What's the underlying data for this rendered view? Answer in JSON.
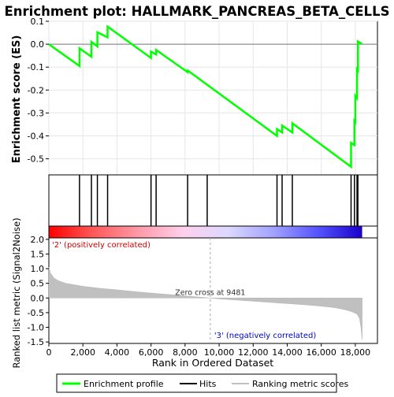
{
  "chart_data": {
    "type": "line",
    "title": "Enrichment plot: HALLMARK_PANCREAS_BETA_CELLS",
    "es_panel": {
      "ylabel": "Enrichment score (ES)",
      "ylim": [
        -0.57,
        0.1
      ],
      "yticks": [
        -0.5,
        -0.4,
        -0.3,
        -0.2,
        -0.1,
        0.0,
        0.1
      ],
      "grid": true,
      "series_name": "Enrichment profile",
      "color": "#00ff00",
      "points": [
        [
          0,
          0.0
        ],
        [
          1800,
          -0.095
        ],
        [
          1800,
          -0.018
        ],
        [
          2500,
          -0.055
        ],
        [
          2500,
          0.01
        ],
        [
          2850,
          -0.01
        ],
        [
          2850,
          0.052
        ],
        [
          3450,
          0.03
        ],
        [
          3450,
          0.077
        ],
        [
          6000,
          -0.06
        ],
        [
          6000,
          -0.032
        ],
        [
          6300,
          -0.045
        ],
        [
          6300,
          -0.025
        ],
        [
          8150,
          -0.122
        ],
        [
          8150,
          -0.115
        ],
        [
          8250,
          -0.12
        ],
        [
          13400,
          -0.4
        ],
        [
          13400,
          -0.37
        ],
        [
          13700,
          -0.385
        ],
        [
          13700,
          -0.355
        ],
        [
          14300,
          -0.385
        ],
        [
          14300,
          -0.345
        ],
        [
          17750,
          -0.535
        ],
        [
          17750,
          -0.43
        ],
        [
          17950,
          -0.44
        ],
        [
          17950,
          -0.335
        ],
        [
          18000,
          -0.34
        ],
        [
          18000,
          -0.225
        ],
        [
          18100,
          -0.235
        ],
        [
          18100,
          -0.11
        ],
        [
          18150,
          -0.115
        ],
        [
          18150,
          0.012
        ],
        [
          18400,
          0.0
        ]
      ]
    },
    "hits_panel": {
      "series_name": "Hits",
      "positions": [
        1800,
        2500,
        2850,
        3450,
        6000,
        6300,
        8150,
        9300,
        13400,
        13700,
        14300,
        17750,
        17950,
        18100,
        18150
      ]
    },
    "metric_panel": {
      "ylabel": "Ranked list metric (Signal2Noise)",
      "ylim": [
        -1.55,
        2.05
      ],
      "yticks": [
        -1.5,
        -1.0,
        -0.5,
        0.0,
        0.5,
        1.0,
        1.5,
        2.0
      ],
      "series_name": "Ranking metric scores",
      "color": "#c0c0c0",
      "profile": [
        [
          0,
          1.05
        ],
        [
          100,
          0.85
        ],
        [
          300,
          0.68
        ],
        [
          600,
          0.58
        ],
        [
          1000,
          0.5
        ],
        [
          2000,
          0.4
        ],
        [
          3000,
          0.33
        ],
        [
          4000,
          0.28
        ],
        [
          5000,
          0.22
        ],
        [
          6000,
          0.17
        ],
        [
          7000,
          0.12
        ],
        [
          8000,
          0.07
        ],
        [
          9000,
          0.025
        ],
        [
          9481,
          0.0
        ],
        [
          10000,
          -0.03
        ],
        [
          11000,
          -0.07
        ],
        [
          12000,
          -0.11
        ],
        [
          13000,
          -0.15
        ],
        [
          14000,
          -0.19
        ],
        [
          15000,
          -0.23
        ],
        [
          16000,
          -0.28
        ],
        [
          16800,
          -0.33
        ],
        [
          17400,
          -0.4
        ],
        [
          17800,
          -0.47
        ],
        [
          18100,
          -0.55
        ],
        [
          18250,
          -0.7
        ],
        [
          18330,
          -1.0
        ],
        [
          18400,
          -1.42
        ]
      ],
      "zero_cross_label": "Zero cross at 9481",
      "zero_cross": 9481,
      "pos_label": "'2' (positively correlated)",
      "neg_label": "'3' (negatively correlated)"
    },
    "heat_stops": [
      "#ff0000",
      "#ff5a5a",
      "#ff9aa8",
      "#ffd0ec",
      "#dcd8ff",
      "#a3a3ff",
      "#5555ff",
      "#1a00cc"
    ],
    "xaxis": {
      "label": "Rank in Ordered Dataset",
      "xlim": [
        0,
        19300
      ],
      "ticks": [
        0,
        2000,
        4000,
        6000,
        8000,
        10000,
        12000,
        14000,
        16000,
        18000
      ],
      "tick_labels": [
        "0",
        "2,000",
        "4,000",
        "6,000",
        "8,000",
        "10,000",
        "12,000",
        "14,000",
        "16,000",
        "18,000"
      ],
      "n_genes": 18400
    },
    "legend": {
      "placement": "bottom",
      "items": [
        "Enrichment profile",
        "Hits",
        "Ranking metric scores"
      ]
    }
  }
}
